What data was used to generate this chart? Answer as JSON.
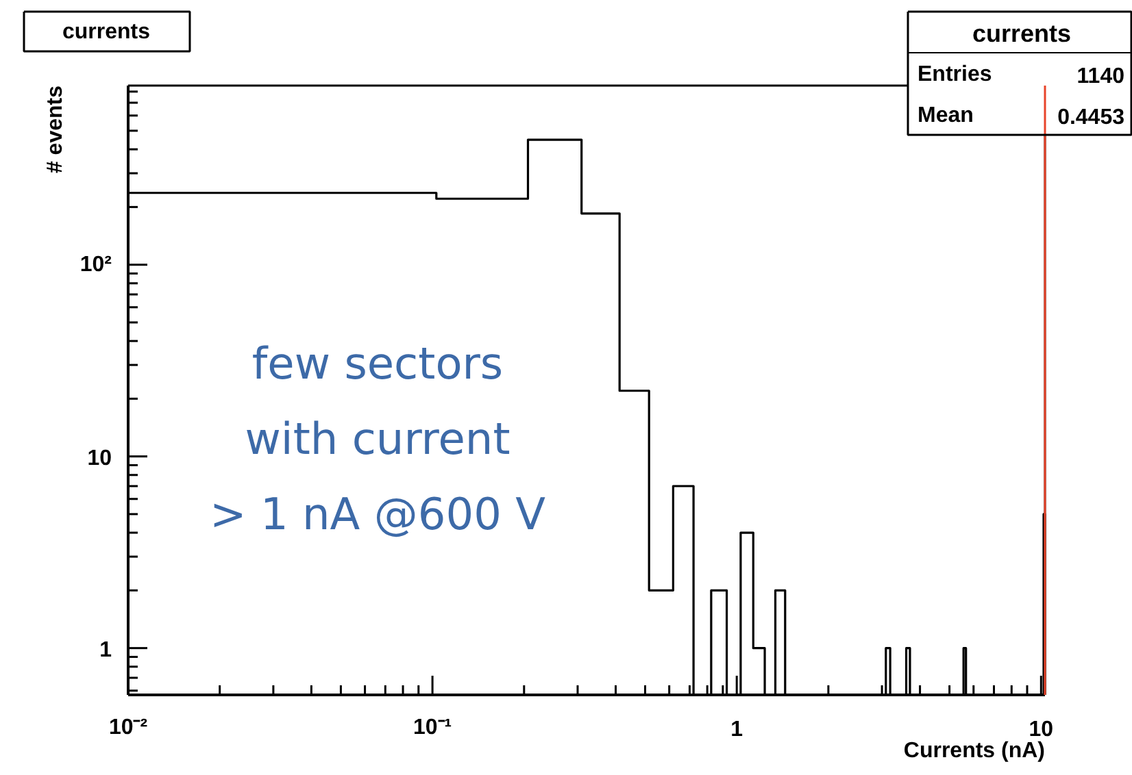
{
  "chart_data": {
    "type": "histogram",
    "title": "currents",
    "xlabel": "Currents (nA)",
    "ylabel": "# events",
    "log": "xy",
    "grid": false,
    "bins": [
      0.01,
      0.103,
      0.206,
      0.309,
      0.412,
      0.515,
      0.618,
      0.721,
      0.824,
      0.927,
      1.03,
      1.133,
      1.236,
      1.339,
      1.442,
      3.09,
      3.193,
      3.605,
      3.708,
      5.562,
      5.665,
      10.197,
      10.3
    ],
    "values": [
      237,
      221,
      449,
      185,
      22,
      2,
      7,
      null,
      2,
      null,
      4,
      1,
      null,
      2,
      null,
      1,
      null,
      1,
      null,
      1,
      null,
      5
    ],
    "color": "#000000",
    "xlim": [
      0.01,
      10.3
    ],
    "ylim": [
      0.57,
      860
    ],
    "xticks": [
      {
        "value": 0.01,
        "label": "10⁻²"
      },
      {
        "value": 0.1,
        "label": "10⁻¹"
      },
      1,
      10
    ],
    "yticks": [
      1,
      10,
      {
        "value": 100,
        "label": "10²"
      }
    ],
    "ref_lines": [
      {
        "axis": "x",
        "value": 10.3,
        "label": null,
        "color": "#e8442a"
      }
    ],
    "annotations": [
      "currents",
      "Entries",
      "1140",
      "Mean",
      "0.4453",
      "few sectors\nwith current\n> 1 nA @600 V"
    ]
  }
}
